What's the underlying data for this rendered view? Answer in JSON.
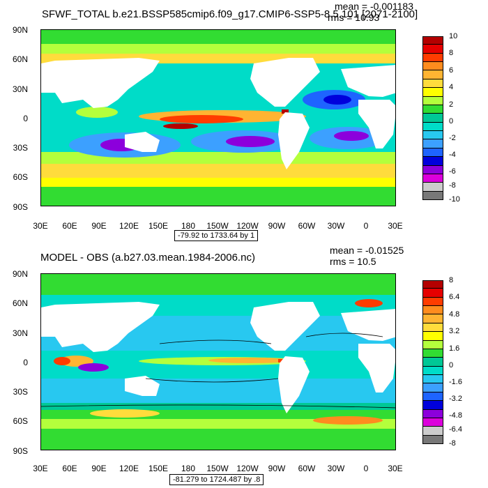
{
  "panels": [
    {
      "title": "SFWF_TOTAL b.e21.BSSP585cmip6.f09_g17.CMIP6-SSP5-8.5.101 [2071-2100]",
      "mean": "mean = -0.001183",
      "rms": "rms = 10.93",
      "range": "-79.92 to 1733.64 by 1",
      "y_ticks": [
        "90N",
        "60N",
        "30N",
        "0",
        "30S",
        "60S",
        "90S"
      ],
      "x_ticks": [
        "30E",
        "60E",
        "90E",
        "120E",
        "150E",
        "180",
        "150W",
        "120W",
        "90W",
        "60W",
        "30W",
        "0",
        "30E"
      ],
      "colorbar_labels": [
        "10",
        "8",
        "6",
        "4",
        "2",
        "0",
        "-2",
        "-4",
        "-6",
        "-8",
        "-10"
      ],
      "colorbar_colors": [
        "#b40000",
        "#e60000",
        "#ff3c00",
        "#ff8c1e",
        "#ffb432",
        "#ffdc3c",
        "#ffff00",
        "#b4ff3c",
        "#32dc32",
        "#00c896",
        "#00dcc8",
        "#28c8f0",
        "#3ca0ff",
        "#1e64ff",
        "#0000dc",
        "#8c00dc",
        "#dc00dc",
        "#cccccc",
        "#787878"
      ]
    },
    {
      "title": "MODEL - OBS (a.b27.03.mean.1984-2006.nc)",
      "mean": "mean = -0.01525",
      "rms": "rms = 10.5",
      "range": "-81.279 to 1724.487 by .8",
      "y_ticks": [
        "90N",
        "60N",
        "30N",
        "0",
        "30S",
        "60S",
        "90S"
      ],
      "x_ticks": [
        "30E",
        "60E",
        "90E",
        "120E",
        "150E",
        "180",
        "150W",
        "120W",
        "90W",
        "60W",
        "30W",
        "0",
        "30E"
      ],
      "colorbar_labels": [
        "8",
        "6.4",
        "4.8",
        "3.2",
        "1.6",
        "0",
        "-1.6",
        "-3.2",
        "-4.8",
        "-6.4",
        "-8"
      ],
      "colorbar_colors": [
        "#b40000",
        "#e60000",
        "#ff3c00",
        "#ff8c1e",
        "#ffb432",
        "#ffdc3c",
        "#ffff00",
        "#b4ff3c",
        "#32dc32",
        "#00c896",
        "#00dcc8",
        "#28c8f0",
        "#3ca0ff",
        "#1e64ff",
        "#0000dc",
        "#8c00dc",
        "#dc00dc",
        "#cccccc",
        "#787878"
      ]
    }
  ]
}
